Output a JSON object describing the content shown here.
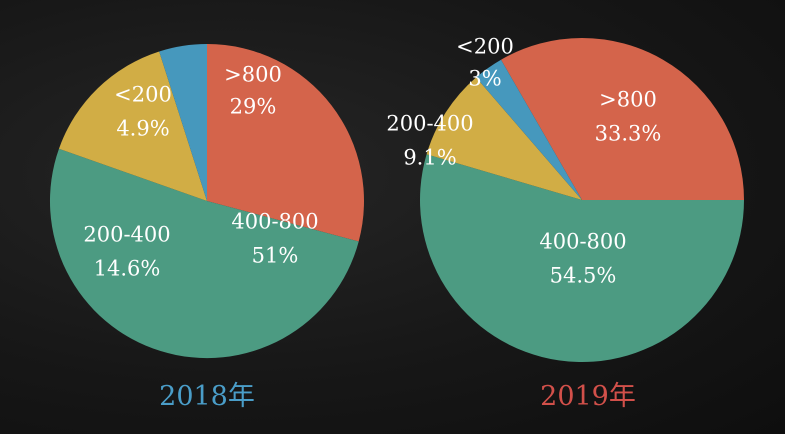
{
  "chart_data": [
    {
      "type": "pie",
      "title": "2018年",
      "title_color": "#4a9dc8",
      "slices": [
        {
          "label": ">800",
          "percent_label": "29%",
          "value": 29,
          "color": "#d4644b"
        },
        {
          "label": "400-800",
          "percent_label": "51%",
          "value": 51,
          "color": "#4c9b82"
        },
        {
          "label": "200-400",
          "percent_label": "14.6%",
          "value": 14.6,
          "color": "#d1ad45"
        },
        {
          "label": "<200",
          "percent_label": "4.9%",
          "value": 4.9,
          "color": "#4698bd"
        }
      ]
    },
    {
      "type": "pie",
      "title": "2019年",
      "title_color": "#d2504a",
      "slices": [
        {
          "label": ">800",
          "percent_label": "33.3%",
          "value": 33.3,
          "color": "#d4644b"
        },
        {
          "label": "400-800",
          "percent_label": "54.5%",
          "value": 54.5,
          "color": "#4c9b82"
        },
        {
          "label": "200-400",
          "percent_label": "9.1%",
          "value": 9.1,
          "color": "#d1ad45"
        },
        {
          "label": "<200",
          "percent_label": "3%",
          "value": 3,
          "color": "#4698bd"
        }
      ]
    }
  ]
}
